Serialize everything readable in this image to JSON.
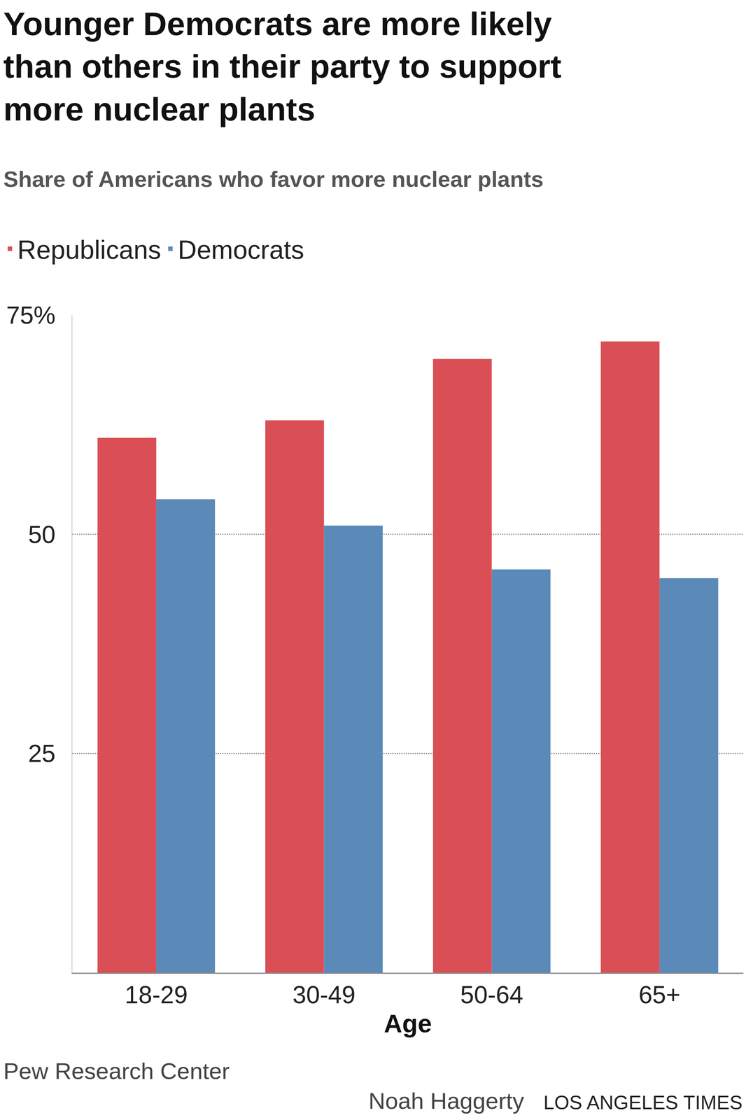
{
  "chart_data": {
    "type": "bar",
    "title": "Younger Democrats are more likely than others in their party to support more nuclear plants",
    "subtitle": "Share of Americans who favor more nuclear plants",
    "x_label": "Age",
    "categories": [
      "18-29",
      "30-49",
      "50-64",
      "65+"
    ],
    "series": [
      {
        "name": "Republicans",
        "color": "#d94f55",
        "values": [
          61,
          63,
          70,
          72
        ]
      },
      {
        "name": "Democrats",
        "color": "#5b8ab8",
        "values": [
          54,
          51,
          46,
          45
        ]
      }
    ],
    "ylim": [
      0,
      75
    ],
    "yticks": [
      25,
      50,
      {
        "value": 75,
        "label": "75%"
      }
    ],
    "grid": true,
    "legend": "top-left",
    "source": "Pew Research Center",
    "credit": "Noah Haggerty",
    "publisher": "LOS ANGELES TIMES"
  }
}
